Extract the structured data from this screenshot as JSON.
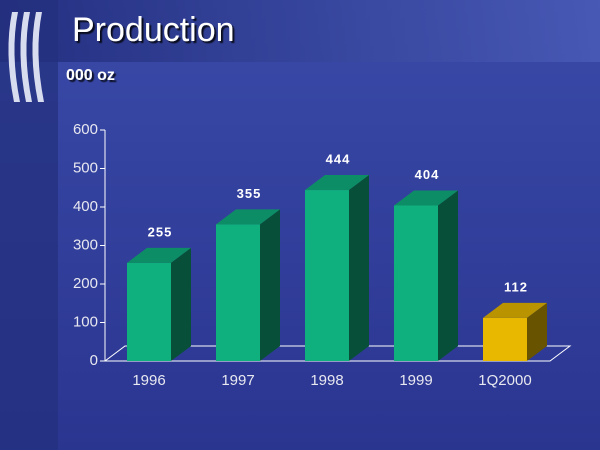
{
  "chart_data": {
    "type": "bar3d",
    "title": "Production",
    "subtitle": "000 oz",
    "categories": [
      "1996",
      "1997",
      "1998",
      "1999",
      "1Q2000"
    ],
    "values": [
      255,
      355,
      444,
      404,
      112
    ],
    "colors": [
      "#10b07e",
      "#10b07e",
      "#10b07e",
      "#10b07e",
      "#e8b800"
    ],
    "ylim": [
      0,
      600
    ],
    "yticks": [
      0,
      100,
      200,
      300,
      400,
      500,
      600
    ]
  }
}
